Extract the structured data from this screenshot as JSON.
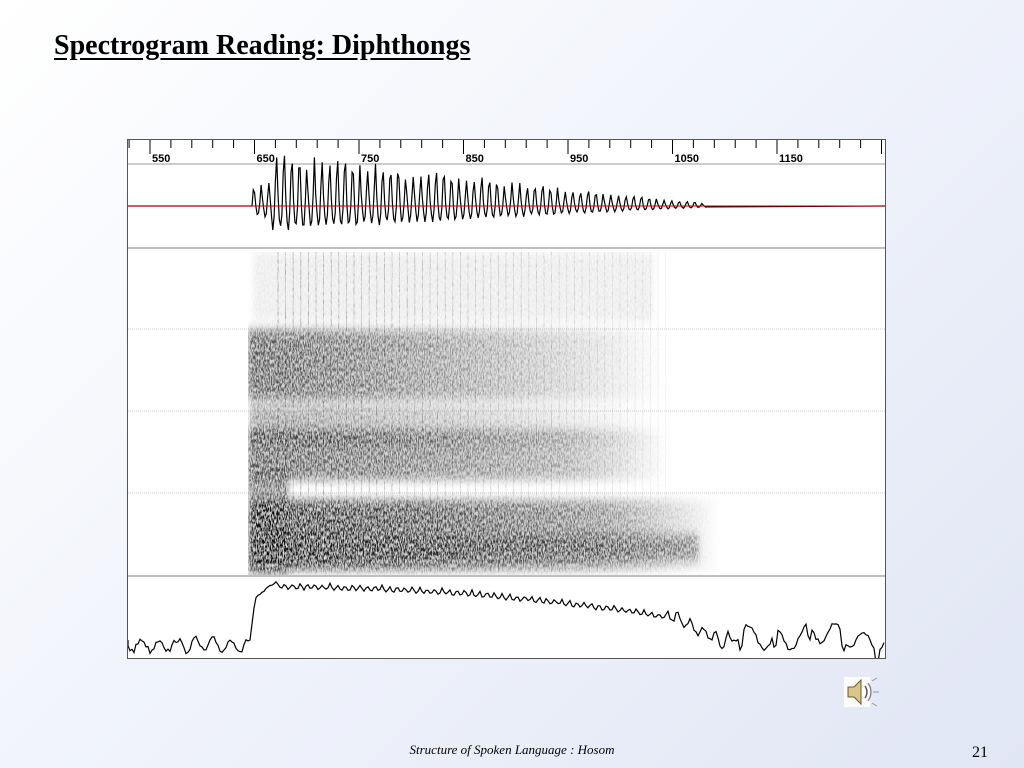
{
  "slide": {
    "title": "Spectrogram Reading: Diphthongs",
    "footer": "Structure of Spoken Language : Hosom",
    "page_number": "21"
  },
  "figure": {
    "time_axis": {
      "ticks": [
        "550",
        "650",
        "750",
        "850",
        "950",
        "1050",
        "1150"
      ]
    },
    "waveform_zero_line_color": "#cc0000"
  },
  "icons": {
    "speaker": "speaker-icon"
  }
}
